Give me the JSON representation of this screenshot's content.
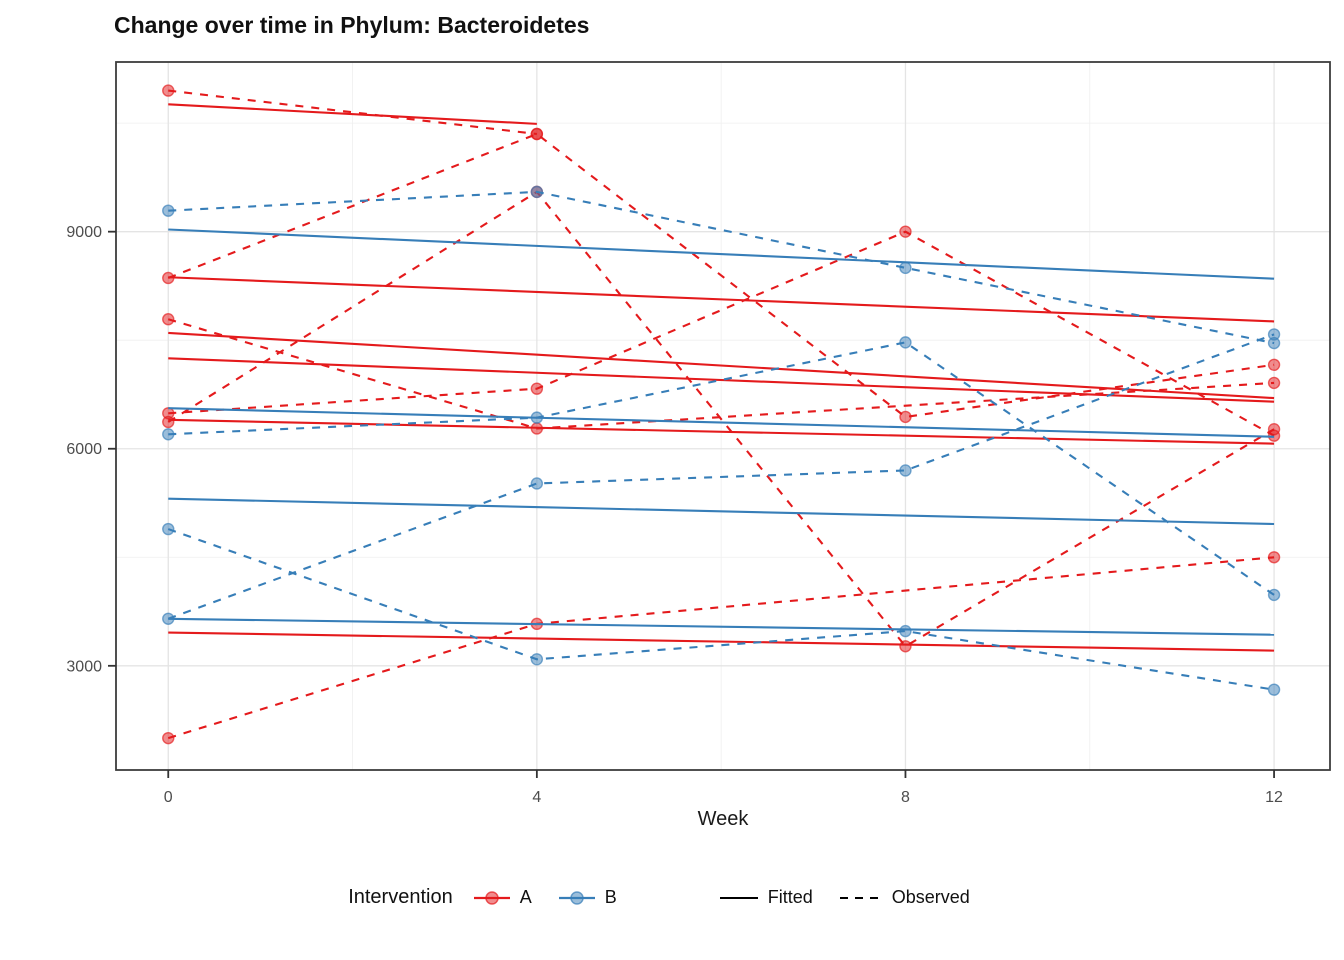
{
  "title": "Change over time in Phylum: Bacteroidetes",
  "legend": {
    "intervention_label": "Intervention",
    "a_label": "A",
    "b_label": "B",
    "fitted_label": "Fitted",
    "observed_label": "Observed"
  },
  "colors": {
    "intervention_a": "#E41A1C",
    "intervention_b": "#377EB8",
    "grid_major": "#E4E4E4",
    "grid_minor": "#EFEFEF",
    "panel_border": "#3c3c3c",
    "tick_text": "#4d4d4d",
    "axis_tick": "#333333",
    "legend_key": "#000000"
  },
  "chart_data": {
    "type": "line",
    "title": "Change over time in Phylum: Bacteroidetes",
    "xlabel": "Week",
    "ylabel": "",
    "x_ticks": [
      0,
      4,
      8,
      12
    ],
    "x_minor": [
      2,
      6,
      10
    ],
    "y_ticks": [
      3000,
      6000,
      9000
    ],
    "y_minor": [
      4500,
      7500,
      10500
    ],
    "xlim": [
      -0.567,
      12.607
    ],
    "ylim": [
      1560,
      11345
    ],
    "grid": true,
    "legend_position": "bottom",
    "series": [
      {
        "id": "A1",
        "intervention": "A",
        "observed": {
          "weeks": [
            0,
            4
          ],
          "values": [
            10950,
            10350
          ]
        },
        "fitted": {
          "weeks": [
            0,
            4
          ],
          "values": [
            10760,
            10490
          ]
        }
      },
      {
        "id": "A2",
        "intervention": "A",
        "observed": {
          "weeks": [
            0,
            4,
            8,
            12
          ],
          "values": [
            8360,
            10350,
            6440,
            7160
          ]
        },
        "fitted": {
          "weeks": [
            0,
            12
          ],
          "values": [
            8370,
            7760
          ]
        }
      },
      {
        "id": "A3",
        "intervention": "A",
        "observed": {
          "weeks": [
            0,
            4,
            8,
            12
          ],
          "values": [
            6490,
            6830,
            9000,
            6180
          ]
        },
        "fitted": {
          "weeks": [
            0,
            12
          ],
          "values": [
            7250,
            6650
          ]
        }
      },
      {
        "id": "A4",
        "intervention": "A",
        "observed": {
          "weeks": [
            0,
            4,
            8,
            12
          ],
          "values": [
            6370,
            9550,
            3270,
            6270
          ]
        },
        "fitted": {
          "weeks": [
            0,
            12
          ],
          "values": [
            6400,
            6070
          ]
        }
      },
      {
        "id": "A5",
        "intervention": "A",
        "observed": {
          "weeks": [
            0,
            4,
            12
          ],
          "values": [
            7790,
            6280,
            6910
          ]
        },
        "fitted": {
          "weeks": [
            0,
            12
          ],
          "values": [
            7600,
            6700
          ]
        }
      },
      {
        "id": "A6",
        "intervention": "A",
        "observed": {
          "weeks": [
            0,
            4,
            12
          ],
          "values": [
            2000,
            3580,
            4500
          ]
        },
        "fitted": {
          "weeks": [
            0,
            12
          ],
          "values": [
            3460,
            3210
          ]
        }
      },
      {
        "id": "B1",
        "intervention": "B",
        "observed": {
          "weeks": [
            0,
            4,
            8,
            12
          ],
          "values": [
            9290,
            9550,
            8500,
            7460
          ]
        },
        "fitted": {
          "weeks": [
            0,
            12
          ],
          "values": [
            9030,
            8350
          ]
        }
      },
      {
        "id": "B2",
        "intervention": "B",
        "observed": {
          "weeks": [
            0,
            4,
            8,
            12
          ],
          "values": [
            6200,
            6430,
            7470,
            3980
          ]
        },
        "fitted": {
          "weeks": [
            0,
            12
          ],
          "values": [
            6560,
            6165
          ]
        }
      },
      {
        "id": "B3",
        "intervention": "B",
        "observed": {
          "weeks": [
            0,
            4,
            8,
            12
          ],
          "values": [
            4890,
            3090,
            3480,
            2670
          ]
        },
        "fitted": {
          "weeks": [
            0,
            12
          ],
          "values": [
            3650,
            3430
          ]
        }
      },
      {
        "id": "B4",
        "intervention": "B",
        "observed": {
          "weeks": [
            0,
            4,
            8,
            12
          ],
          "values": [
            3650,
            5520,
            5700,
            7580
          ]
        },
        "fitted": {
          "weeks": [
            0,
            12
          ],
          "values": [
            5310,
            4960
          ]
        }
      }
    ]
  }
}
